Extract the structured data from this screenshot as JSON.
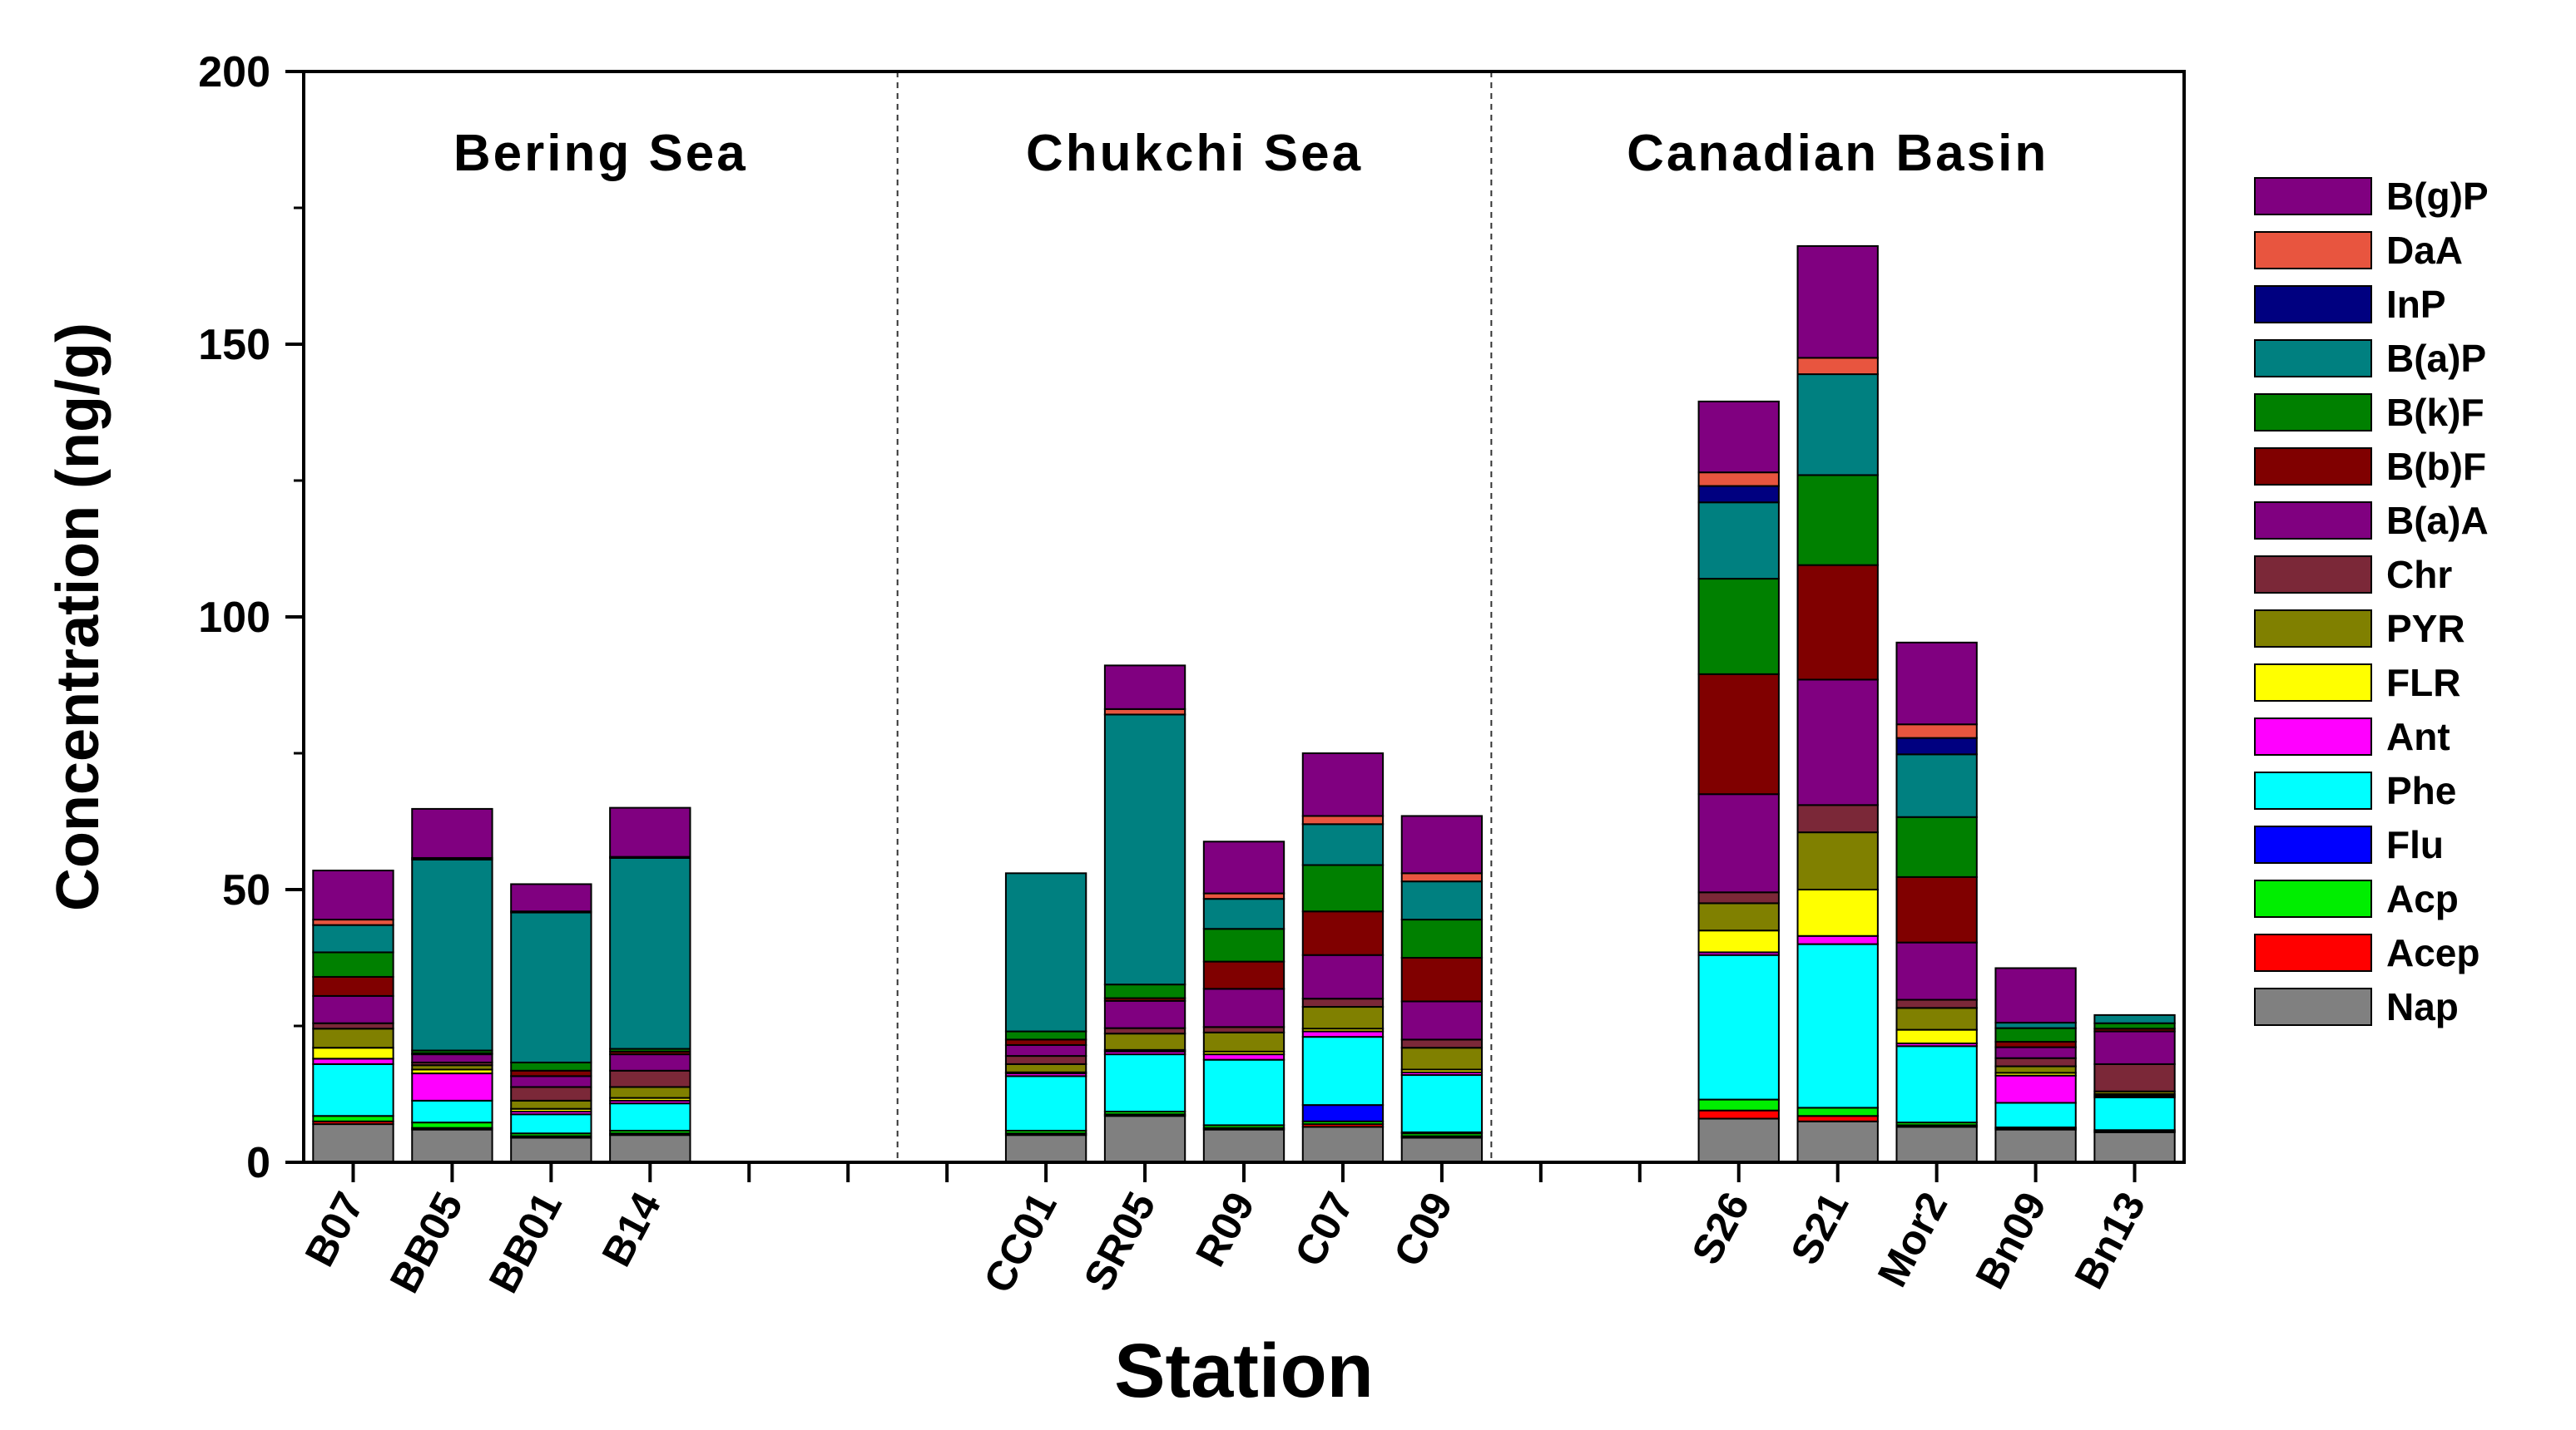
{
  "chart_data": {
    "type": "bar",
    "stacked": true,
    "xlabel": "Station",
    "ylabel": "Concentration (ng/g)",
    "ylim": [
      0,
      200
    ],
    "yticks": [
      0,
      50,
      100,
      150,
      200
    ],
    "regions": [
      {
        "label": "Bering Sea",
        "first": 0,
        "last": 5
      },
      {
        "label": "Chukchi Sea",
        "first": 6,
        "last": 11
      },
      {
        "label": "Canadian Basin",
        "first": 12,
        "last": 18
      }
    ],
    "categories": [
      "B07",
      "BB05",
      "BB01",
      "B14",
      "",
      "",
      "",
      "CC01",
      "SR05",
      "R09",
      "C07",
      "C09",
      "",
      "",
      "S26",
      "S21",
      "Mor2",
      "Bn09",
      "Bn13"
    ],
    "legend_position": "right",
    "series": [
      {
        "name": "Nap",
        "color": "#808080",
        "values": [
          7,
          6,
          4.5,
          5,
          0,
          0,
          0,
          5,
          8.5,
          6,
          6.5,
          4.5,
          0,
          0,
          8,
          7.5,
          6.5,
          6,
          5.5
        ]
      },
      {
        "name": "Acep",
        "color": "#ff0000",
        "values": [
          0.5,
          0.3,
          0.3,
          0.3,
          0,
          0,
          0,
          0.3,
          0.3,
          0.3,
          0.5,
          0.3,
          0,
          0,
          1.5,
          1,
          0.3,
          0.2,
          0.2
        ]
      },
      {
        "name": "Acp",
        "color": "#00ee00",
        "values": [
          1,
          1,
          0.5,
          0.5,
          0,
          0,
          0,
          0.5,
          0.5,
          0.5,
          0.5,
          0.5,
          0,
          0,
          2,
          1.5,
          0.5,
          0.2,
          0.2
        ]
      },
      {
        "name": "Flu",
        "color": "#0000ff",
        "values": [
          0,
          0,
          0,
          0,
          0,
          0,
          0,
          0,
          0,
          0,
          3,
          0.2,
          0,
          0,
          0,
          0,
          0,
          0,
          0
        ]
      },
      {
        "name": "Phe",
        "color": "#00ffff",
        "values": [
          9.5,
          4,
          3.5,
          5,
          0,
          0,
          0,
          10,
          10.5,
          12,
          12.5,
          10.5,
          0,
          0,
          26.5,
          30,
          14,
          4.5,
          6
        ]
      },
      {
        "name": "Ant",
        "color": "#ff00ff",
        "values": [
          1,
          5,
          0.5,
          0.5,
          0,
          0,
          0,
          0.5,
          0.5,
          1,
          1,
          0.5,
          0,
          0,
          0.5,
          1.5,
          0.5,
          5,
          0.3
        ]
      },
      {
        "name": "FLR",
        "color": "#ffff00",
        "values": [
          2,
          0.7,
          0.5,
          0.5,
          0,
          0,
          0,
          0.2,
          0.3,
          0.5,
          0.5,
          0.5,
          0,
          0,
          4,
          8.5,
          2.5,
          0.5,
          0.3
        ]
      },
      {
        "name": "PYR",
        "color": "#808000",
        "values": [
          3.5,
          0.8,
          1.5,
          2,
          0,
          0,
          0,
          1.5,
          3,
          3.5,
          4,
          4,
          0,
          0,
          5,
          10.5,
          4,
          1.2,
          0.5
        ]
      },
      {
        "name": "Chr",
        "color": "#7b2838",
        "values": [
          1,
          0.5,
          2.5,
          3,
          0,
          0,
          0,
          1.5,
          1,
          1,
          1.5,
          1.5,
          0,
          0,
          2,
          5,
          1.5,
          1.5,
          5
        ]
      },
      {
        "name": "B(a)A",
        "color": "#800080",
        "values": [
          5,
          1.5,
          2,
          3,
          0,
          0,
          0,
          2,
          5,
          7,
          8,
          7,
          0,
          0,
          18,
          23,
          10.5,
          2,
          6
        ]
      },
      {
        "name": "B(b)F",
        "color": "#800000",
        "values": [
          3.5,
          0.2,
          1,
          0.5,
          0,
          0,
          0,
          1,
          0.5,
          5,
          8,
          8,
          0,
          0,
          22,
          21,
          12,
          1,
          0.5
        ]
      },
      {
        "name": "B(k)F",
        "color": "#008000",
        "values": [
          4.5,
          0.5,
          1.5,
          0.5,
          0,
          0,
          0,
          1.5,
          2.5,
          6,
          8.5,
          7,
          0,
          0,
          17.5,
          16.5,
          11,
          2.5,
          1
        ]
      },
      {
        "name": "B(a)P",
        "color": "#008080",
        "values": [
          5,
          35,
          27.5,
          35,
          0,
          0,
          0,
          29,
          49.5,
          5.5,
          7.5,
          7,
          0,
          0,
          14,
          18.5,
          11.5,
          1,
          1.5
        ]
      },
      {
        "name": "InP",
        "color": "#000080",
        "values": [
          0,
          0,
          0,
          0,
          0,
          0,
          0,
          0,
          0,
          0,
          0,
          0,
          0,
          0,
          3,
          0,
          3,
          0,
          0
        ]
      },
      {
        "name": "DaA",
        "color": "#e8553f",
        "values": [
          1,
          0.3,
          0.2,
          0.2,
          0,
          0,
          0,
          0,
          1,
          1,
          1.5,
          1.5,
          0,
          0,
          2.5,
          3,
          2.5,
          0,
          0
        ]
      },
      {
        "name": "B(g)P",
        "color": "#800080",
        "values": [
          9,
          9,
          5,
          9,
          0,
          0,
          0,
          0,
          8,
          9.5,
          11.5,
          10.5,
          0,
          0,
          13,
          20.5,
          15,
          10,
          0
        ]
      }
    ]
  }
}
